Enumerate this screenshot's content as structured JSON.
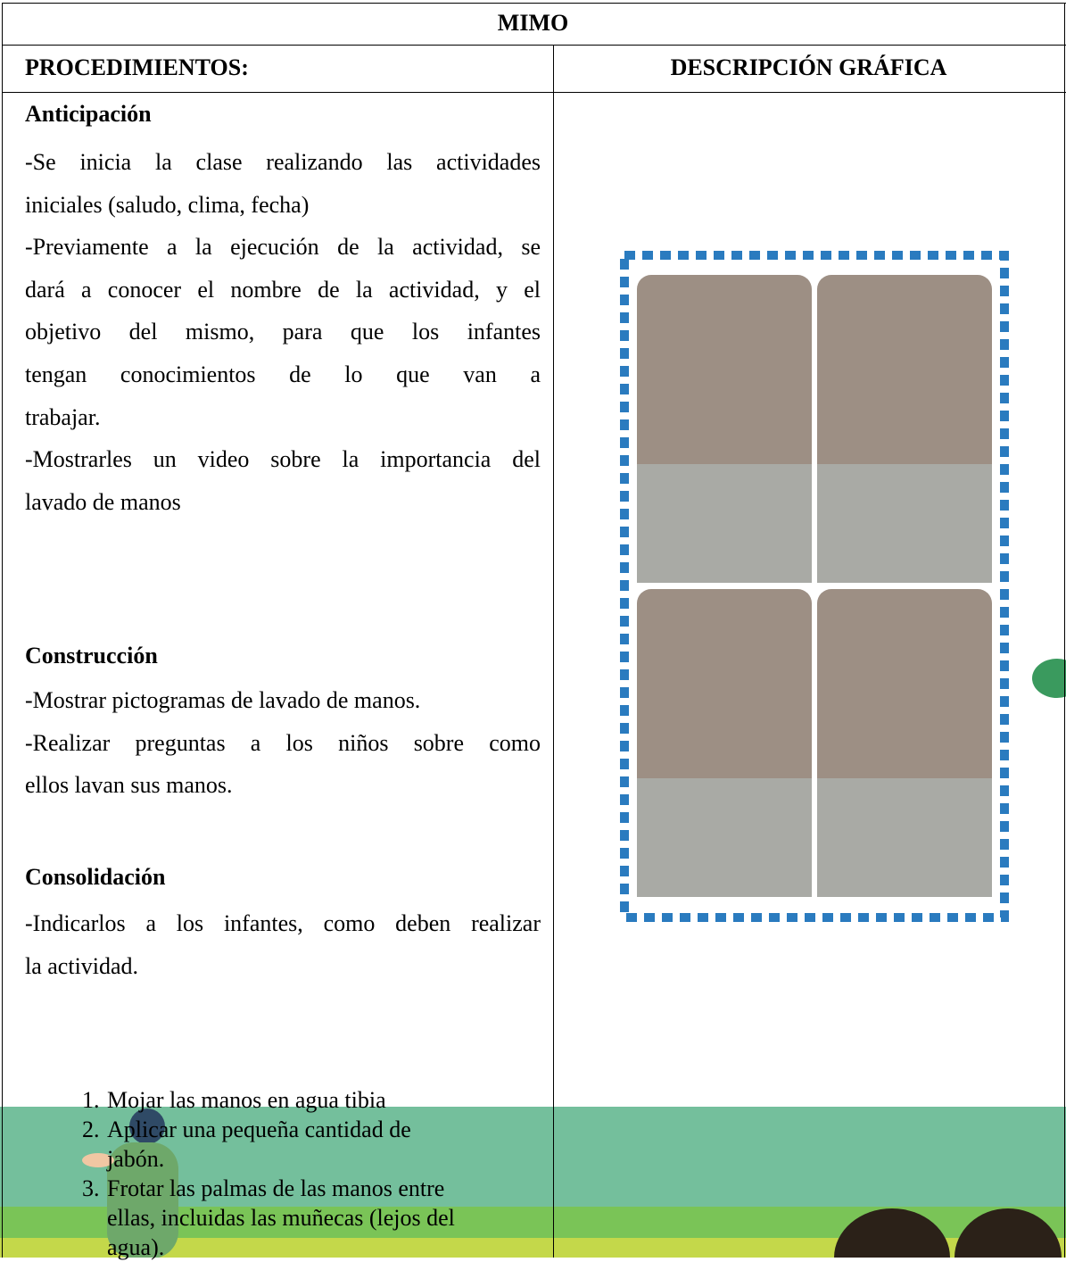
{
  "header": {
    "title": "MIMO",
    "columns": [
      "PROCEDIMIENTOS:",
      "DESCRIPCIÓN GRÁFICA"
    ]
  },
  "sections": [
    {
      "heading": "Anticipación",
      "lines": [
        "-Se inicia la clase realizando las actividades",
        "iniciales (saludo, clima, fecha)",
        "-Previamente a la ejecución de la actividad, se",
        "dará a conocer el nombre de la actividad, y el",
        "objetivo del mismo, para que los infantes",
        "tengan conocimientos de lo que van a",
        "trabajar.",
        "-Mostrarles un video sobre la importancia del",
        "lavado de manos"
      ]
    },
    {
      "heading": "Construcción",
      "lines": [
        "-Mostrar pictogramas de lavado de manos.",
        "-Realizar preguntas a los niños sobre como",
        "ellos lavan sus manos."
      ]
    },
    {
      "heading": "Consolidación",
      "lines": [
        "-Indicarlos a los infantes, como deben realizar",
        "la actividad."
      ]
    }
  ],
  "steps": [
    {
      "number": "1.",
      "lines": [
        "Mojar las manos en agua tibia"
      ]
    },
    {
      "number": "2.",
      "lines": [
        "Aplicar una pequeña cantidad de",
        "jabón."
      ]
    },
    {
      "number": "3.",
      "lines": [
        "Frotar las palmas de las manos entre",
        "ellas, incluidas las muñecas (lejos del",
        "agua)."
      ]
    }
  ]
}
